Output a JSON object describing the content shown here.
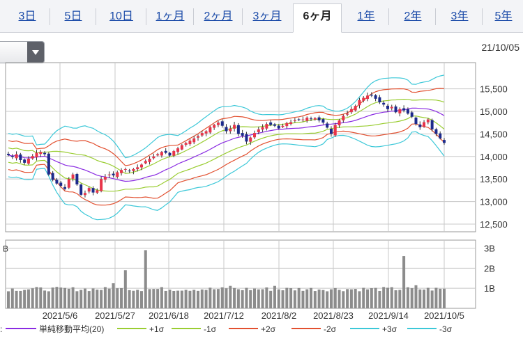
{
  "tabs": [
    {
      "label": "3日"
    },
    {
      "label": "5日"
    },
    {
      "label": "10日"
    },
    {
      "label": "1ヶ月"
    },
    {
      "label": "2ヶ月"
    },
    {
      "label": "3ヶ月"
    },
    {
      "label": "6ヶ月",
      "active": true
    },
    {
      "label": "1年"
    },
    {
      "label": "2年"
    },
    {
      "label": "3年"
    },
    {
      "label": "5年"
    }
  ],
  "date_label": "21/10/05",
  "chart_data": {
    "type": "candlestick",
    "price_axis": {
      "ticks": [
        "15,500",
        "15,000",
        "14,500",
        "14,000",
        "13,500",
        "13,000",
        "12,500"
      ],
      "values": [
        15500,
        15000,
        14500,
        14000,
        13500,
        13000,
        12500
      ],
      "range": [
        12330,
        16080
      ]
    },
    "volume_axis": {
      "ticks": [
        "3B",
        "2B",
        "1B"
      ],
      "values": [
        3,
        2,
        1
      ],
      "range": [
        0,
        3.4
      ],
      "left_label": "B"
    },
    "x_labels": [
      "2021/5/6",
      "2021/5/27",
      "2021/6/18",
      "2021/7/12",
      "2021/8/2",
      "2021/8/23",
      "2021/9/14",
      "2021/10/5"
    ],
    "legend": [
      {
        "label": "単純移動平均(20)",
        "color": "#8a2be2"
      },
      {
        "label": "+1σ",
        "color": "#9acd32"
      },
      {
        "label": "-1σ",
        "color": "#9acd32"
      },
      {
        "label": "+2σ",
        "color": "#e25030"
      },
      {
        "label": "-2σ",
        "color": "#e25030"
      },
      {
        "label": "+3σ",
        "color": "#3cc8d8"
      },
      {
        "label": "-3σ",
        "color": "#3cc8d8"
      }
    ],
    "legend_prefix": ":",
    "colors": {
      "up": "#e8344a",
      "down": "#1c2a8c",
      "volume": "#8c8c8c",
      "grid": "#c8c8c8"
    },
    "close": [
      14030,
      13990,
      14050,
      13920,
      13860,
      13950,
      14010,
      14080,
      14100,
      14050,
      13600,
      13480,
      13400,
      13350,
      13280,
      13500,
      13600,
      13380,
      13150,
      13190,
      13300,
      13200,
      13250,
      13500,
      13550,
      13600,
      13580,
      13650,
      13700,
      13720,
      13680,
      13720,
      13760,
      13820,
      13900,
      13950,
      14000,
      14050,
      14100,
      14080,
      14020,
      14120,
      14180,
      14250,
      14300,
      14350,
      14400,
      14450,
      14520,
      14560,
      14650,
      14700,
      14750,
      14680,
      14560,
      14620,
      14700,
      14500,
      14460,
      14330,
      14420,
      14520,
      14600,
      14650,
      14720,
      14700,
      14680,
      14620,
      14680,
      14740,
      14760,
      14800,
      14820,
      14820,
      14860,
      14830,
      14850,
      14800,
      14750,
      14640,
      14500,
      14700,
      14800,
      14900,
      14950,
      15050,
      15120,
      15250,
      15300,
      15350,
      15350,
      15280,
      15200,
      15150,
      15050,
      15100,
      14980,
      15050,
      15020,
      14950,
      14880,
      14720,
      14650,
      14760,
      14820,
      14600,
      14500,
      14400,
      14300
    ]
  }
}
